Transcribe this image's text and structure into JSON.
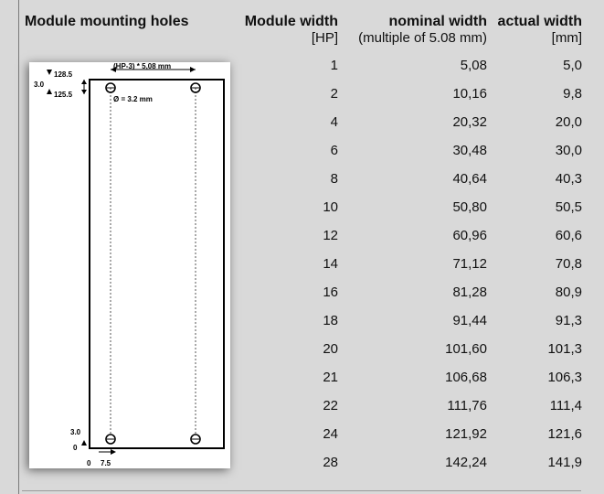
{
  "header": {
    "title": "Module mounting holes",
    "width_label": "Module width",
    "width_unit": "[HP]",
    "nominal_label": "nominal width",
    "nominal_sub": "(multiple of 5.08 mm)",
    "actual_label": "actual width",
    "actual_unit": "[mm]"
  },
  "diagram": {
    "top_offset": "128.5",
    "second_offset": "125.5",
    "hole_spacing_formula": "(HP-3) * 5,08 mm",
    "left_spacing": "3.0",
    "hole_diameter": "Ø = 3.2 mm",
    "bottom_height": "3.0",
    "zero_y": "0",
    "zero_x": "0",
    "edge_offset": "7.5"
  },
  "rows": [
    {
      "hp": "1",
      "nominal": "5,08",
      "actual": "5,0"
    },
    {
      "hp": "2",
      "nominal": "10,16",
      "actual": "9,8"
    },
    {
      "hp": "4",
      "nominal": "20,32",
      "actual": "20,0"
    },
    {
      "hp": "6",
      "nominal": "30,48",
      "actual": "30,0"
    },
    {
      "hp": "8",
      "nominal": "40,64",
      "actual": "40,3"
    },
    {
      "hp": "10",
      "nominal": "50,80",
      "actual": "50,5"
    },
    {
      "hp": "12",
      "nominal": "60,96",
      "actual": "60,6"
    },
    {
      "hp": "14",
      "nominal": "71,12",
      "actual": "70,8"
    },
    {
      "hp": "16",
      "nominal": "81,28",
      "actual": "80,9"
    },
    {
      "hp": "18",
      "nominal": "91,44",
      "actual": "91,3"
    },
    {
      "hp": "20",
      "nominal": "101,60",
      "actual": "101,3"
    },
    {
      "hp": "21",
      "nominal": "106,68",
      "actual": "106,3"
    },
    {
      "hp": "22",
      "nominal": "111,76",
      "actual": "111,4"
    },
    {
      "hp": "24",
      "nominal": "121,92",
      "actual": "121,6"
    },
    {
      "hp": "28",
      "nominal": "142,24",
      "actual": "141,9"
    }
  ]
}
